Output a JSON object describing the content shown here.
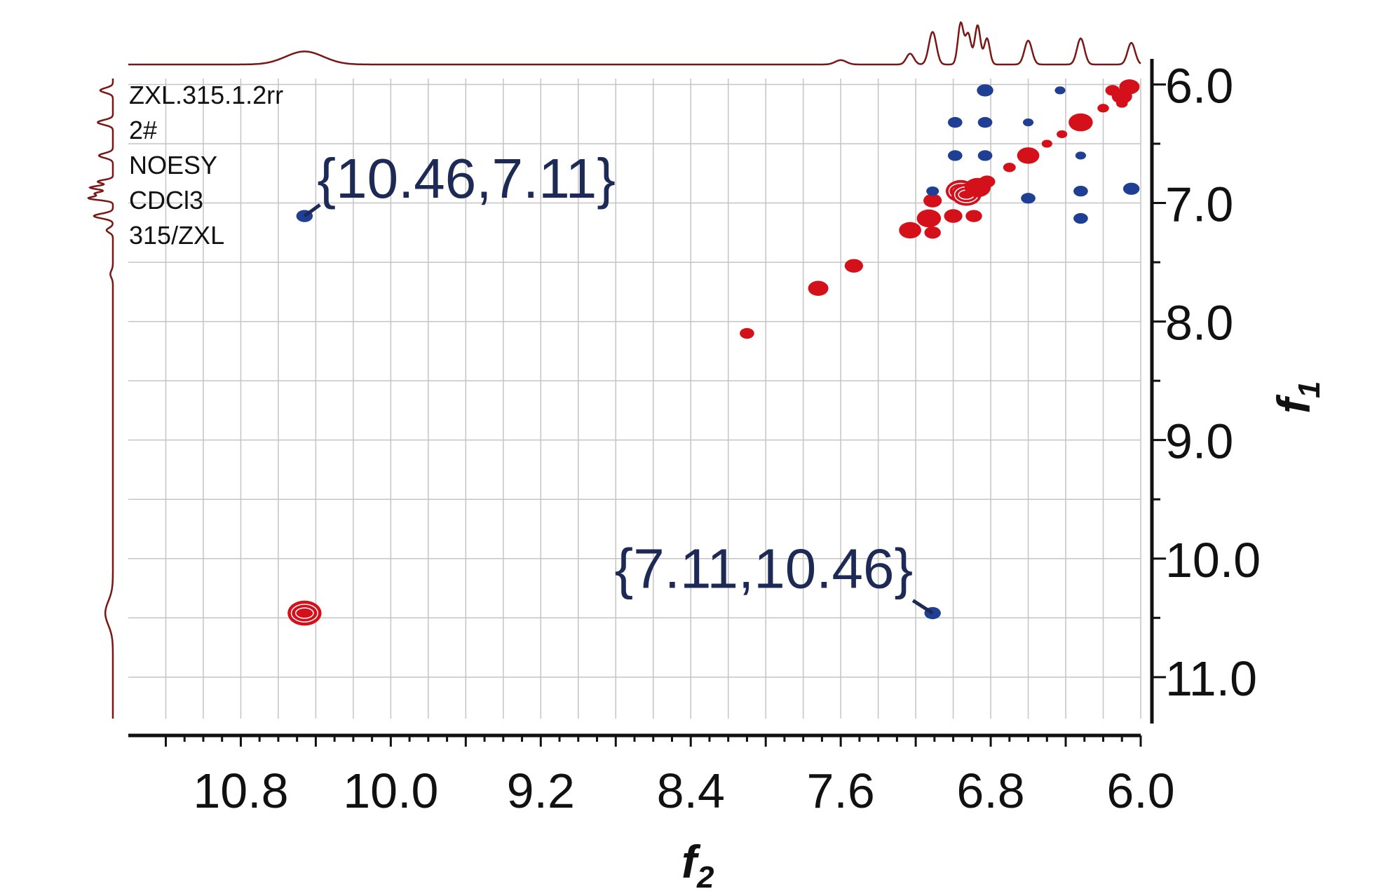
{
  "info_lines": [
    "ZXL.315.1.2rr",
    "2#",
    "NOESY",
    "CDCl3",
    "315/ZXL"
  ],
  "colors": {
    "positive_peak": "#d4101a",
    "negative_peak": "#1f3f95",
    "projection_line": "#7a1616",
    "annotation": "#1c2a55",
    "grid": "#c4c4c4",
    "axis": "#111111"
  },
  "chart_data": {
    "type": "scatter",
    "chart_kind": "2D NOESY NMR spectrum",
    "x_axis": {
      "label": "f",
      "label_subscript": "2",
      "range": [
        11.4,
        6.0
      ],
      "reversed": true,
      "tick_labels": [
        "10.8",
        "10.0",
        "9.2",
        "8.4",
        "7.6",
        "6.8",
        "6.0"
      ],
      "tick_values": [
        10.8,
        10.0,
        9.2,
        8.4,
        7.6,
        6.8,
        6.0
      ]
    },
    "y_axis": {
      "label": "f",
      "label_subscript": "1",
      "range": [
        5.95,
        11.35
      ],
      "reversed": true,
      "side": "right",
      "tick_labels": [
        "6.0",
        "7.0",
        "8.0",
        "9.0",
        "10.0",
        "11.0"
      ],
      "tick_values": [
        6.0,
        7.0,
        8.0,
        9.0,
        10.0,
        11.0
      ]
    },
    "grid": true,
    "series": [
      {
        "sign": "positive",
        "points": [
          {
            "x": 10.46,
            "y": 10.46,
            "size": 3
          },
          {
            "x": 8.1,
            "y": 8.1,
            "size": 1
          },
          {
            "x": 7.72,
            "y": 7.72,
            "size": 1.6
          },
          {
            "x": 7.53,
            "y": 7.53,
            "size": 1.4
          },
          {
            "x": 7.23,
            "y": 7.23,
            "size": 1.8
          },
          {
            "x": 7.13,
            "y": 7.13,
            "size": 2
          },
          {
            "x": 7.11,
            "y": 6.98,
            "size": 1.4
          },
          {
            "x": 7.11,
            "y": 7.25,
            "size": 1.2
          },
          {
            "x": 7.0,
            "y": 7.11,
            "size": 1.4
          },
          {
            "x": 6.96,
            "y": 6.9,
            "size": 2.6
          },
          {
            "x": 6.93,
            "y": 6.93,
            "size": 2.6
          },
          {
            "x": 6.87,
            "y": 6.87,
            "size": 2.2
          },
          {
            "x": 6.89,
            "y": 7.11,
            "size": 1.2
          },
          {
            "x": 6.82,
            "y": 6.82,
            "size": 1.2
          },
          {
            "x": 6.7,
            "y": 6.7,
            "size": 0.8
          },
          {
            "x": 6.6,
            "y": 6.6,
            "size": 1.8
          },
          {
            "x": 6.5,
            "y": 6.5,
            "size": 0.6
          },
          {
            "x": 6.42,
            "y": 6.42,
            "size": 0.6
          },
          {
            "x": 6.32,
            "y": 6.32,
            "size": 2
          },
          {
            "x": 6.2,
            "y": 6.2,
            "size": 0.7
          },
          {
            "x": 6.1,
            "y": 6.1,
            "size": 1.6
          },
          {
            "x": 6.06,
            "y": 6.02,
            "size": 1.6
          },
          {
            "x": 6.15,
            "y": 6.05,
            "size": 1
          },
          {
            "x": 6.1,
            "y": 6.16,
            "size": 0.7
          }
        ]
      },
      {
        "sign": "negative",
        "points": [
          {
            "x": 10.46,
            "y": 7.11,
            "size": 1.2
          },
          {
            "x": 7.11,
            "y": 10.46,
            "size": 1.2
          },
          {
            "x": 6.83,
            "y": 6.05,
            "size": 1.2
          },
          {
            "x": 6.99,
            "y": 6.32,
            "size": 1
          },
          {
            "x": 6.83,
            "y": 6.32,
            "size": 1
          },
          {
            "x": 6.6,
            "y": 6.32,
            "size": 0.6
          },
          {
            "x": 6.99,
            "y": 6.6,
            "size": 1
          },
          {
            "x": 6.83,
            "y": 6.6,
            "size": 1
          },
          {
            "x": 6.32,
            "y": 6.6,
            "size": 0.6
          },
          {
            "x": 7.11,
            "y": 6.9,
            "size": 0.8
          },
          {
            "x": 6.6,
            "y": 6.96,
            "size": 1
          },
          {
            "x": 6.32,
            "y": 6.9,
            "size": 1
          },
          {
            "x": 6.05,
            "y": 6.88,
            "size": 1.2
          },
          {
            "x": 6.32,
            "y": 7.13,
            "size": 1
          },
          {
            "x": 6.43,
            "y": 6.05,
            "size": 0.6
          }
        ]
      }
    ],
    "annotations": [
      {
        "text": "{10.46,7.11}",
        "x": 10.46,
        "y": 7.11
      },
      {
        "text": "{7.11,10.46}",
        "x": 7.11,
        "y": 10.46
      }
    ]
  }
}
